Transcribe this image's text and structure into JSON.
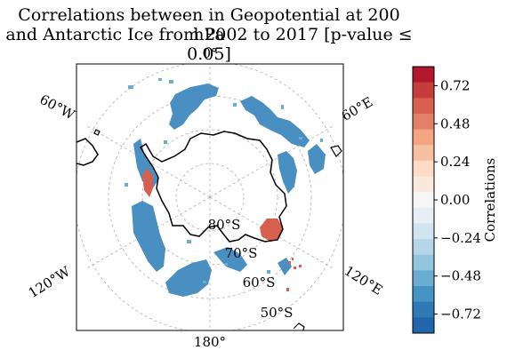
{
  "title_line1": "Correlations between in Geopotential at 200 hPa",
  "title_line2": "and Antarctic Ice from 2002 to 2017 [p-value ≤ 0.05]",
  "lon_labels": {
    "top": "0°",
    "upper_left": "60°W",
    "upper_right": "60°E",
    "lower_left": "120°W",
    "lower_right": "120°E",
    "bottom": "180°"
  },
  "lat_labels": [
    "80°S",
    "70°S",
    "60°S",
    "50°S"
  ],
  "colorbar": {
    "label": "Correlations",
    "ticks": [
      "0.72",
      "0.48",
      "0.24",
      "0.00",
      "−0.24",
      "−0.48",
      "−0.72"
    ],
    "range": [
      -0.84,
      0.84
    ],
    "colors_top_to_bottom": [
      "#b2182b",
      "#c43c3c",
      "#d6604d",
      "#e2806a",
      "#f4a582",
      "#f8c0a2",
      "#fddbc7",
      "#fbe8dc",
      "#f7f7f7",
      "#e6eff5",
      "#d1e5f0",
      "#b5d6e8",
      "#92c5de",
      "#6bacd1",
      "#4393c3",
      "#2f79b5",
      "#2166ac"
    ],
    "positive_color": "#d6604d",
    "negative_color": "#4393c3"
  },
  "chart_data": {
    "type": "heatmap",
    "projection": "South Polar Stereographic",
    "variable": "Correlations",
    "extent": "50°S to South Pole",
    "grid": true
  }
}
